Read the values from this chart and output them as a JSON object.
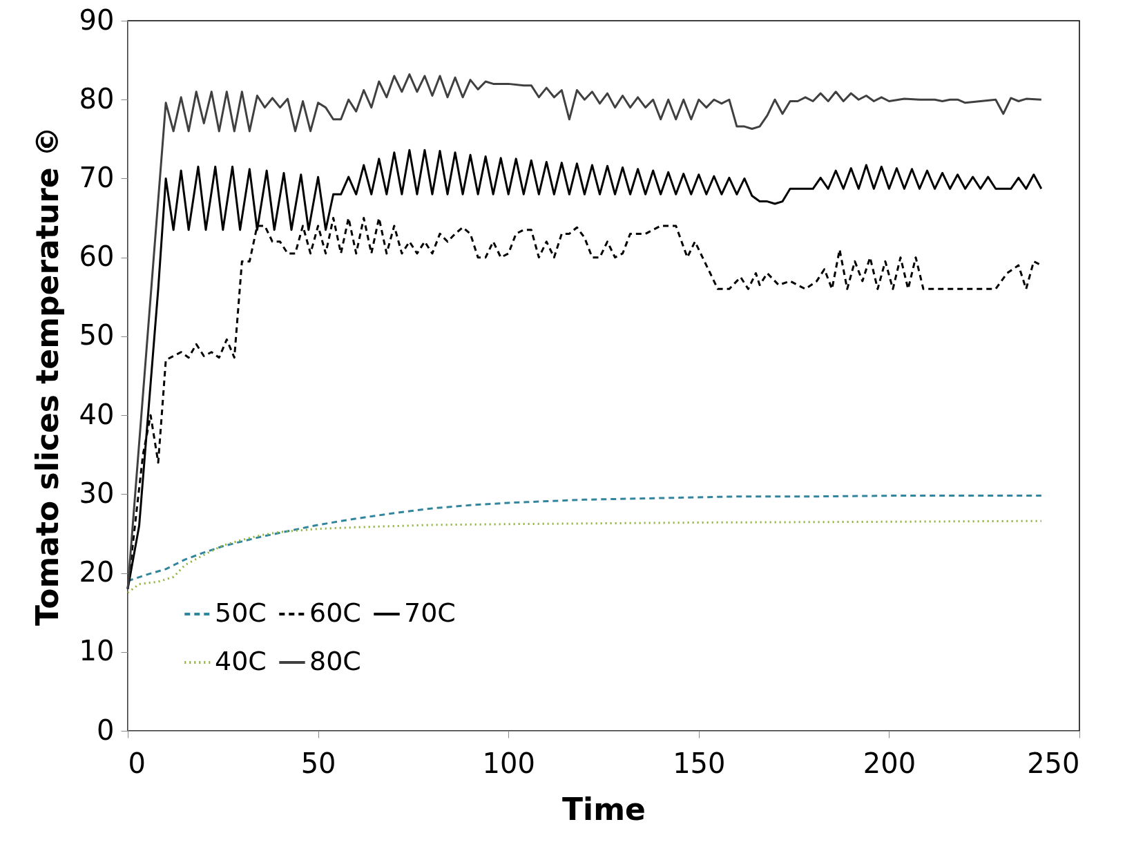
{
  "chart_data": {
    "type": "line",
    "xlabel": "Time",
    "ylabel": "Tomato slices temperature ©",
    "xlim": [
      0,
      250
    ],
    "xticks": [
      0,
      50,
      100,
      150,
      200,
      250
    ],
    "ylim": [
      0,
      90
    ],
    "yticks": [
      0,
      10,
      20,
      30,
      40,
      50,
      60,
      70,
      80,
      90
    ],
    "grid": false,
    "legend": "bottom left",
    "marker": "none",
    "series": [
      {
        "name": "50C",
        "color": "#31859c",
        "line_style": "dashed",
        "x": [
          0,
          5,
          10,
          15,
          20,
          25,
          30,
          35,
          40,
          45,
          50,
          55,
          60,
          70,
          80,
          90,
          100,
          120,
          140,
          160,
          180,
          200,
          220,
          240
        ],
        "values": [
          19,
          19.8,
          20.5,
          21.7,
          22.6,
          23.4,
          24,
          24.6,
          25.1,
          25.6,
          26.1,
          26.5,
          26.9,
          27.6,
          28.2,
          28.6,
          28.9,
          29.3,
          29.5,
          29.7,
          29.7,
          29.8,
          29.8,
          29.8
        ]
      },
      {
        "name": "60C",
        "color": "#000000",
        "line_style": "dashed",
        "x": [
          0,
          4,
          6,
          8,
          10,
          12,
          14,
          16,
          18,
          20,
          22,
          24,
          26,
          28,
          30,
          32,
          34,
          36,
          38,
          40,
          42,
          44,
          46,
          48,
          50,
          52,
          54,
          56,
          58,
          60,
          62,
          64,
          66,
          68,
          70,
          72,
          74,
          76,
          78,
          80,
          82,
          84,
          86,
          88,
          90,
          92,
          94,
          96,
          98,
          100,
          102,
          104,
          106,
          108,
          110,
          112,
          114,
          116,
          118,
          120,
          122,
          124,
          126,
          128,
          130,
          132,
          136,
          140,
          144,
          147,
          149,
          151,
          155,
          158,
          161,
          163,
          165,
          166,
          168,
          171,
          174,
          178,
          181,
          183,
          185,
          187,
          189,
          191,
          193,
          195,
          197,
          199,
          201,
          203,
          205,
          207,
          209,
          212,
          220,
          228,
          231,
          234,
          236,
          238,
          240
        ],
        "values": [
          18,
          35,
          40,
          34,
          47,
          47.5,
          48,
          47.3,
          49,
          47.5,
          48,
          47.3,
          49.6,
          47.3,
          59.5,
          59.5,
          64,
          64,
          62,
          62,
          60.5,
          60.5,
          64,
          60.5,
          64,
          60.5,
          65,
          60.5,
          65,
          60.5,
          65,
          60.5,
          65,
          60.5,
          64,
          60.5,
          62,
          60.5,
          62,
          60.5,
          63,
          62,
          63,
          63.8,
          63,
          60,
          60,
          62,
          60,
          60.5,
          63,
          63.5,
          63.5,
          60,
          62,
          60,
          63,
          63,
          63.8,
          62.5,
          60,
          60,
          62,
          60,
          60.5,
          63,
          63,
          64,
          64,
          60,
          62,
          60,
          56,
          56,
          57.5,
          56,
          58,
          56.5,
          58,
          56.5,
          57,
          56,
          57,
          58.5,
          56,
          61,
          56,
          59.5,
          57,
          60,
          56,
          59.5,
          56,
          60,
          56,
          60,
          56,
          56,
          56,
          56,
          58,
          59,
          56,
          59.5,
          59
        ]
      },
      {
        "name": "70C",
        "color": "#000000",
        "line_style": "solid",
        "x": [
          0,
          3,
          8,
          10,
          12,
          14,
          16,
          18.5,
          20.5,
          23,
          25,
          27.5,
          29.5,
          32,
          34,
          36.5,
          38.5,
          41,
          43,
          45.5,
          47.5,
          50,
          52,
          54,
          56,
          58,
          60,
          62,
          64,
          66,
          68,
          70,
          72,
          74,
          76,
          78,
          80,
          82,
          84,
          86,
          88,
          90,
          92,
          94,
          96,
          98,
          100,
          102,
          104,
          106,
          108,
          110,
          112,
          114,
          116,
          118,
          120,
          122,
          124,
          126,
          128,
          130,
          132,
          134,
          136,
          138,
          140,
          142,
          144,
          146,
          148,
          150,
          152,
          154,
          156,
          158,
          160,
          162,
          164,
          166,
          168,
          170,
          172,
          174,
          176,
          178,
          180,
          182,
          184,
          186,
          188,
          190,
          192,
          194,
          196,
          198,
          200,
          202,
          204,
          206,
          208,
          210,
          212,
          214,
          216,
          218,
          220,
          222,
          224,
          226,
          228,
          232,
          234,
          236,
          238,
          240
        ],
        "values": [
          18,
          26,
          56,
          70,
          63.5,
          71,
          63.5,
          71.5,
          63.5,
          71.5,
          63.5,
          71.5,
          63.5,
          71.2,
          63.5,
          71,
          63.5,
          70.7,
          63.5,
          70.5,
          63.5,
          70.2,
          63.5,
          68,
          68,
          70.2,
          68,
          71.7,
          68,
          72.5,
          68,
          73.3,
          68,
          73.6,
          68,
          73.6,
          68,
          73.5,
          68,
          73.3,
          68,
          73,
          68,
          72.8,
          68,
          72.6,
          68,
          72.5,
          68,
          72.3,
          68,
          72.1,
          68,
          72,
          68,
          71.9,
          68,
          71.7,
          68,
          71.6,
          68,
          71.4,
          68,
          71.2,
          68,
          71,
          68,
          70.8,
          68,
          70.6,
          68,
          70.5,
          68,
          70.3,
          68,
          70.1,
          68,
          70,
          67.8,
          67.1,
          67.1,
          66.8,
          67.1,
          68.7,
          68.7,
          68.7,
          68.7,
          70.1,
          68.7,
          71,
          68.7,
          71.3,
          68.7,
          71.7,
          68.7,
          71.5,
          68.7,
          71.3,
          68.7,
          71.2,
          68.7,
          71,
          68.7,
          70.7,
          68.7,
          70.5,
          68.7,
          70.2,
          68.7,
          70.2,
          68.7,
          68.7,
          70.1,
          68.7,
          70.5,
          68.7
        ]
      },
      {
        "name": "40C",
        "color": "#8db33a",
        "line_style": "dotted",
        "x": [
          0,
          3,
          8,
          12,
          15,
          20,
          25,
          30,
          35,
          40,
          50,
          60,
          80,
          100,
          150,
          200,
          240
        ],
        "values": [
          17.5,
          18.6,
          18.9,
          19.5,
          21,
          22.3,
          23.5,
          24.2,
          24.8,
          25.2,
          25.6,
          25.8,
          26.1,
          26.2,
          26.4,
          26.5,
          26.6
        ]
      },
      {
        "name": "80C",
        "color": "#404040",
        "line_style": "solid",
        "x": [
          0,
          10,
          12,
          14,
          16,
          18,
          20,
          22,
          24,
          26,
          28,
          30,
          32,
          34,
          36,
          38,
          40,
          42,
          44,
          46,
          48,
          50,
          52,
          54,
          56,
          58,
          60,
          62,
          64,
          66,
          68,
          70,
          72,
          74,
          76,
          78,
          80,
          82,
          84,
          86,
          88,
          90,
          92,
          94,
          96,
          100,
          104,
          106,
          108,
          110,
          112,
          114,
          116,
          118,
          120,
          122,
          124,
          126,
          128,
          130,
          132,
          134,
          136,
          138,
          140,
          142,
          144,
          146,
          148,
          150,
          152,
          154,
          156,
          158,
          160,
          162,
          164,
          166,
          168,
          170,
          172,
          174,
          176,
          178,
          180,
          182,
          184,
          186,
          188,
          190,
          192,
          194,
          196,
          198,
          200,
          204,
          208,
          212,
          214,
          216,
          218,
          220,
          224,
          228,
          230,
          232,
          234,
          236,
          240
        ],
        "values": [
          18,
          79.6,
          76,
          80.3,
          76,
          81,
          77,
          81,
          76,
          81,
          76,
          81,
          76,
          80.5,
          79,
          80.2,
          79,
          80.1,
          76,
          79.8,
          76,
          79.6,
          79,
          77.5,
          77.5,
          80,
          78.5,
          81.2,
          79,
          82.3,
          80.3,
          83,
          81,
          83.2,
          81,
          83,
          80.5,
          83,
          80.3,
          82.8,
          80.3,
          82.5,
          81.3,
          82.3,
          82,
          82,
          81.8,
          81.8,
          80.3,
          81.5,
          80.3,
          81.2,
          77.5,
          81.2,
          80,
          81,
          79.5,
          80.8,
          79,
          80.5,
          79,
          80.3,
          79,
          80,
          77.5,
          80,
          77.5,
          80,
          77.5,
          80,
          79,
          80,
          79.5,
          80,
          76.6,
          76.6,
          76.3,
          76.6,
          78,
          80,
          78.2,
          79.8,
          79.8,
          80.3,
          79.8,
          80.8,
          79.8,
          81,
          79.8,
          80.8,
          80,
          80.5,
          79.8,
          80.3,
          79.8,
          80.1,
          80,
          80,
          79.8,
          80,
          80,
          79.6,
          79.8,
          80,
          78.2,
          80.2,
          79.8,
          80.1,
          80
        ]
      }
    ]
  }
}
